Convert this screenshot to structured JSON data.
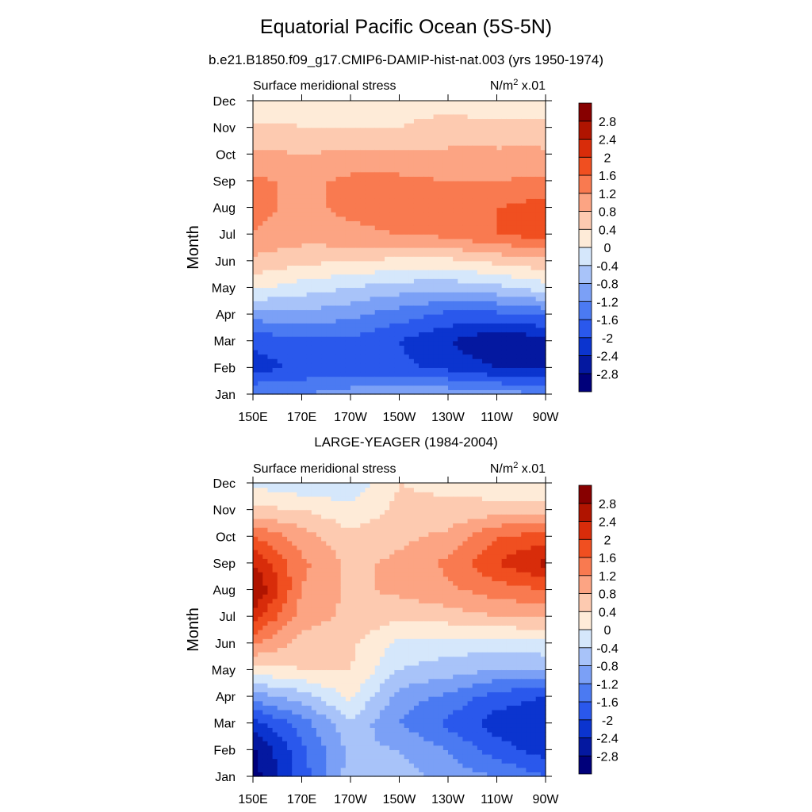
{
  "figure": {
    "title": "Equatorial Pacific Ocean (5S-5N)",
    "subtitle": "b.e21.B1850.f09_g17.CMIP6-DAMIP-hist-nat.003 (yrs 1950-1974)"
  },
  "colorbar": {
    "levels": [
      -2.8,
      -2.4,
      -2,
      -1.6,
      -1.2,
      -0.8,
      -0.4,
      0,
      0.4,
      0.8,
      1.2,
      1.6,
      2,
      2.4,
      2.8
    ],
    "labels": [
      "-2.8",
      "-2.4",
      "-2",
      "-1.6",
      "-1.2",
      "-0.8",
      "-0.4",
      "0",
      "0.4",
      "0.8",
      "1.2",
      "1.6",
      "2",
      "2.4",
      "2.8"
    ],
    "colors": [
      "#00007a",
      "#0418a0",
      "#0b34cf",
      "#2a58ec",
      "#4b7af2",
      "#7ba0f6",
      "#a8c3f9",
      "#d5e7fb",
      "#feebd8",
      "#fdcab0",
      "#fca483",
      "#f97a50",
      "#f04f20",
      "#d82c0a",
      "#b01400",
      "#870000"
    ]
  },
  "chart_data": [
    {
      "type": "heatmap",
      "title": "",
      "left_label": "Surface meridional stress",
      "units_label": "N/m",
      "units_exp": "2",
      "units_scale": " x.01",
      "xlabel": "",
      "ylabel": "Month",
      "xticks": [
        "150E",
        "170E",
        "170W",
        "150W",
        "130W",
        "110W",
        "90W"
      ],
      "yticks": [
        "Jan",
        "Feb",
        "Mar",
        "Apr",
        "May",
        "Jun",
        "Jul",
        "Aug",
        "Sep",
        "Oct",
        "Nov",
        "Dec"
      ],
      "x": [
        150,
        170,
        190,
        210,
        230,
        250,
        270
      ],
      "y": [
        "Jan",
        "Feb",
        "Mar",
        "Apr",
        "May",
        "Jun",
        "Jul",
        "Aug",
        "Sep",
        "Oct",
        "Nov",
        "Dec"
      ],
      "z": [
        [
          -1.2,
          -1.2,
          -1.0,
          -0.9,
          -0.9,
          -1.0,
          -1.2
        ],
        [
          -2.2,
          -1.9,
          -1.8,
          -1.9,
          -2.1,
          -2.4,
          -2.4
        ],
        [
          -1.9,
          -1.7,
          -1.7,
          -2.0,
          -2.4,
          -2.8,
          -2.6
        ],
        [
          -1.0,
          -0.9,
          -1.1,
          -1.4,
          -1.7,
          -1.7,
          -1.5
        ],
        [
          0.1,
          -0.2,
          -0.4,
          -0.6,
          -0.7,
          -0.5,
          -0.2
        ],
        [
          0.7,
          0.5,
          0.4,
          0.3,
          0.3,
          0.5,
          0.7
        ],
        [
          1.2,
          1.0,
          1.1,
          1.2,
          1.3,
          1.6,
          1.8
        ],
        [
          1.3,
          1.1,
          1.3,
          1.4,
          1.4,
          1.6,
          1.8
        ],
        [
          1.3,
          1.1,
          1.3,
          1.3,
          1.2,
          1.2,
          1.3
        ],
        [
          0.9,
          0.8,
          0.9,
          0.9,
          0.9,
          0.9,
          0.9
        ],
        [
          0.5,
          0.4,
          0.4,
          0.4,
          0.5,
          0.5,
          0.5
        ],
        [
          0.0,
          0.3,
          0.3,
          0.3,
          0.3,
          0.2,
          0.1
        ]
      ],
      "xlim": [
        150,
        270
      ],
      "levels_ref": "colorbar"
    },
    {
      "type": "heatmap",
      "title": "LARGE-YEAGER (1984-2004)",
      "left_label": "Surface meridional stress",
      "units_label": "N/m",
      "units_exp": "2",
      "units_scale": " x.01",
      "xlabel": "",
      "ylabel": "Month",
      "xticks": [
        "150E",
        "170E",
        "170W",
        "150W",
        "130W",
        "110W",
        "90W"
      ],
      "yticks": [
        "Jan",
        "Feb",
        "Mar",
        "Apr",
        "May",
        "Jun",
        "Jul",
        "Aug",
        "Sep",
        "Oct",
        "Nov",
        "Dec"
      ],
      "x": [
        150,
        170,
        190,
        210,
        230,
        250,
        270
      ],
      "y": [
        "Jan",
        "Feb",
        "Mar",
        "Apr",
        "May",
        "Jun",
        "Jul",
        "Aug",
        "Sep",
        "Oct",
        "Nov",
        "Dec"
      ],
      "z": [
        [
          -3.0,
          -1.8,
          -0.6,
          -0.6,
          -1.0,
          -1.2,
          -1.6
        ],
        [
          -2.9,
          -1.7,
          -0.7,
          -0.8,
          -1.2,
          -1.8,
          -2.2
        ],
        [
          -2.2,
          -1.4,
          -0.5,
          -1.2,
          -1.7,
          -2.2,
          -2.4
        ],
        [
          -1.0,
          -0.6,
          0.1,
          -1.0,
          -1.3,
          -1.8,
          -2.0
        ],
        [
          0.2,
          0.4,
          0.4,
          -0.4,
          -0.6,
          -0.8,
          -0.8
        ],
        [
          1.3,
          0.6,
          0.5,
          -0.1,
          -0.2,
          -0.2,
          -0.1
        ],
        [
          2.2,
          1.0,
          0.7,
          0.5,
          0.6,
          0.8,
          0.8
        ],
        [
          2.9,
          1.2,
          0.7,
          0.9,
          1.1,
          1.4,
          1.6
        ],
        [
          2.4,
          1.3,
          0.7,
          0.9,
          1.3,
          2.0,
          2.5
        ],
        [
          1.6,
          1.0,
          0.5,
          0.7,
          0.9,
          1.6,
          1.8
        ],
        [
          0.5,
          0.4,
          0.1,
          0.5,
          0.5,
          0.6,
          0.6
        ],
        [
          -0.1,
          -0.3,
          -0.3,
          0.4,
          0.3,
          0.1,
          0.0
        ]
      ],
      "xlim": [
        150,
        270
      ],
      "levels_ref": "colorbar"
    }
  ]
}
